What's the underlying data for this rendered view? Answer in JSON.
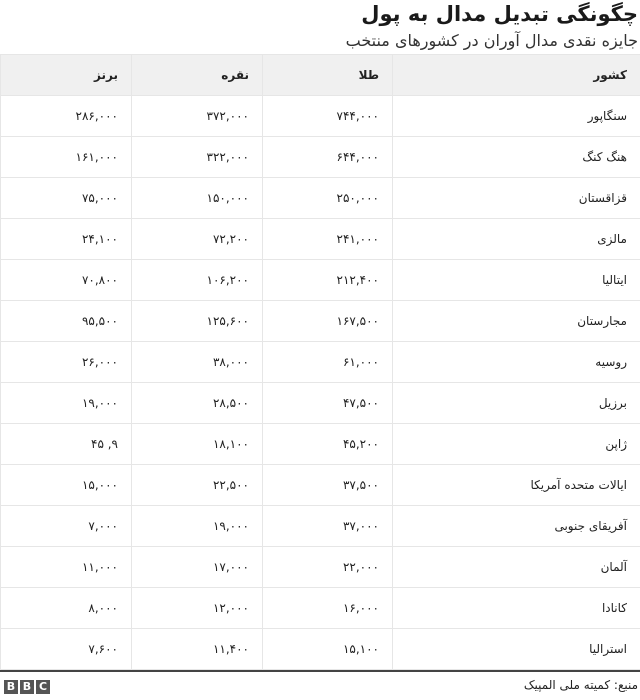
{
  "title": "چگونگی تبدیل مدال به پول",
  "subtitle": "جایزه نقدی مدال آوران در کشورهای منتخب",
  "table": {
    "headers": [
      "کشور",
      "طلا",
      "نقره",
      "برنز"
    ],
    "rows": [
      [
        "سنگاپور",
        "۷۴۴,۰۰۰",
        "۳۷۲,۰۰۰",
        "۲۸۶,۰۰۰"
      ],
      [
        "هنگ کنگ",
        "۶۴۴,۰۰۰",
        "۳۲۲,۰۰۰",
        "۱۶۱,۰۰۰"
      ],
      [
        "قزاقستان",
        "۲۵۰,۰۰۰",
        "۱۵۰,۰۰۰",
        "۷۵,۰۰۰"
      ],
      [
        "مالزی",
        "۲۴۱,۰۰۰",
        "۷۲,۲۰۰",
        "۲۴,۱۰۰"
      ],
      [
        "ایتالیا",
        "۲۱۲,۴۰۰",
        "۱۰۶,۲۰۰",
        "۷۰,۸۰۰"
      ],
      [
        "مجارستان",
        "۱۶۷,۵۰۰",
        "۱۲۵,۶۰۰",
        "۹۵,۵۰۰"
      ],
      [
        "روسیه",
        "۶۱,۰۰۰",
        "۳۸,۰۰۰",
        "۲۶,۰۰۰"
      ],
      [
        "برزیل",
        "۴۷,۵۰۰",
        "۲۸,۵۰۰",
        "۱۹,۰۰۰"
      ],
      [
        "ژاپن",
        "۴۵,۲۰۰",
        "۱۸,۱۰۰",
        "۹, ۴۵"
      ],
      [
        "ایالات متحده آمریکا",
        "۳۷,۵۰۰",
        "۲۲,۵۰۰",
        "۱۵,۰۰۰"
      ],
      [
        "آفریقای جنوبی",
        "۳۷,۰۰۰",
        "۱۹,۰۰۰",
        "۷,۰۰۰"
      ],
      [
        "آلمان",
        "۲۲,۰۰۰",
        "۱۷,۰۰۰",
        "۱۱,۰۰۰"
      ],
      [
        "کانادا",
        "۱۶,۰۰۰",
        "۱۲,۰۰۰",
        "۸,۰۰۰"
      ],
      [
        "استرالیا",
        "۱۵,۱۰۰",
        "۱۱,۴۰۰",
        "۷,۶۰۰"
      ]
    ]
  },
  "footer": {
    "source": "منبع: کمیته ملی المپیک",
    "logo": [
      "B",
      "B",
      "C"
    ]
  }
}
